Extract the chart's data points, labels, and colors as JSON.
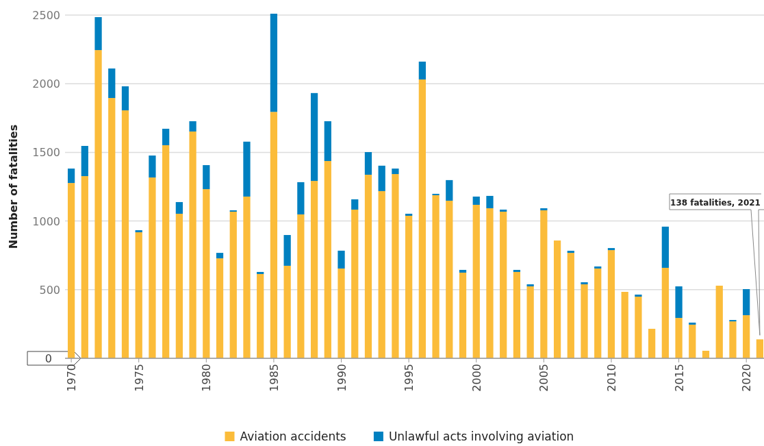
{
  "chart_data": {
    "type": "bar",
    "stacked": true,
    "ylabel": "Number of fatalities",
    "categories": [
      "1970",
      null,
      null,
      null,
      null,
      "1975",
      null,
      null,
      null,
      null,
      "1980",
      null,
      null,
      null,
      null,
      "1985",
      null,
      null,
      null,
      null,
      "1990",
      null,
      null,
      null,
      null,
      "1995",
      null,
      null,
      null,
      null,
      "2000",
      null,
      null,
      null,
      null,
      "2005",
      null,
      null,
      null,
      null,
      "2010",
      null,
      null,
      null,
      null,
      "2015",
      null,
      null,
      null,
      null,
      "2020",
      null
    ],
    "series": [
      {
        "name": "Aviation accidents",
        "color": "#fbbc3a",
        "values": [
          1277,
          1327,
          2245,
          1896,
          1806,
          918,
          1317,
          1552,
          1053,
          1652,
          1232,
          728,
          1068,
          1178,
          614,
          1795,
          674,
          1048,
          1292,
          1437,
          654,
          1083,
          1337,
          1218,
          1342,
          1038,
          2031,
          1188,
          1148,
          624,
          1118,
          1093,
          1068,
          629,
          524,
          1078,
          858,
          768,
          539,
          654,
          788,
          484,
          449,
          215,
          659,
          294,
          245,
          55,
          529,
          269,
          314,
          138
        ]
      },
      {
        "name": "Unlawful acts involving aviation",
        "color": "#0080c0",
        "values": [
          105,
          220,
          240,
          215,
          175,
          15,
          160,
          120,
          85,
          75,
          175,
          40,
          10,
          400,
          15,
          715,
          224,
          235,
          640,
          290,
          130,
          75,
          165,
          185,
          40,
          15,
          130,
          10,
          150,
          20,
          60,
          90,
          15,
          15,
          15,
          15,
          0,
          15,
          15,
          15,
          15,
          0,
          15,
          0,
          300,
          230,
          15,
          0,
          0,
          10,
          190,
          0
        ]
      }
    ],
    "ylim": [
      0,
      2500
    ],
    "yticks": [
      0,
      500,
      1000,
      1500,
      2000,
      2500
    ],
    "grid": "y",
    "legend": "bottom",
    "annotations": [
      "138 fatalities, 2021"
    ]
  }
}
